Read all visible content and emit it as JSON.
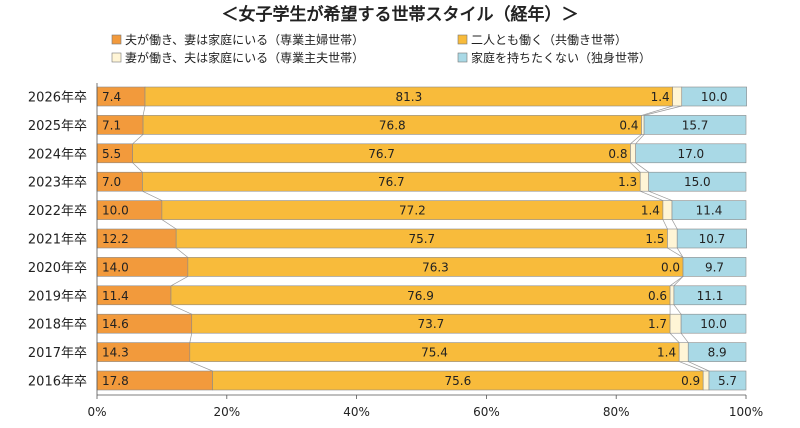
{
  "chart_data": {
    "type": "bar",
    "orientation": "horizontal",
    "stacked": "percent",
    "title": "＜女子学生が希望する世帯スタイル（経年）＞",
    "categories": [
      "2026年卒",
      "2025年卒",
      "2024年卒",
      "2023年卒",
      "2022年卒",
      "2021年卒",
      "2020年卒",
      "2019年卒",
      "2018年卒",
      "2017年卒",
      "2016年卒"
    ],
    "series": [
      {
        "name": "夫が働き、妻は家庭にいる（専業主婦世帯）",
        "color": "#f29a3c",
        "values": [
          7.4,
          7.1,
          5.5,
          7.0,
          10.0,
          12.2,
          14.0,
          11.4,
          14.6,
          14.3,
          17.8
        ]
      },
      {
        "name": "二人とも働く（共働き世帯）",
        "color": "#f8bb3b",
        "values": [
          81.3,
          76.8,
          76.7,
          76.7,
          77.2,
          75.7,
          76.3,
          76.9,
          73.7,
          75.4,
          75.6
        ]
      },
      {
        "name": "妻が働き、夫は家庭にいる（専業主夫世帯）",
        "color": "#fff5d6",
        "values": [
          1.4,
          0.4,
          0.8,
          1.3,
          1.4,
          1.5,
          0.0,
          0.6,
          1.7,
          1.4,
          0.9
        ]
      },
      {
        "name": "家庭を持ちたくない（独身世帯）",
        "color": "#a9d9e6",
        "values": [
          10.0,
          15.7,
          17.0,
          15.0,
          11.4,
          10.7,
          9.7,
          11.1,
          10.0,
          8.9,
          5.7
        ]
      }
    ],
    "xlim": [
      0,
      100
    ],
    "xticks": [
      "0%",
      "20%",
      "40%",
      "60%",
      "80%",
      "100%"
    ],
    "legend_position": "top"
  }
}
